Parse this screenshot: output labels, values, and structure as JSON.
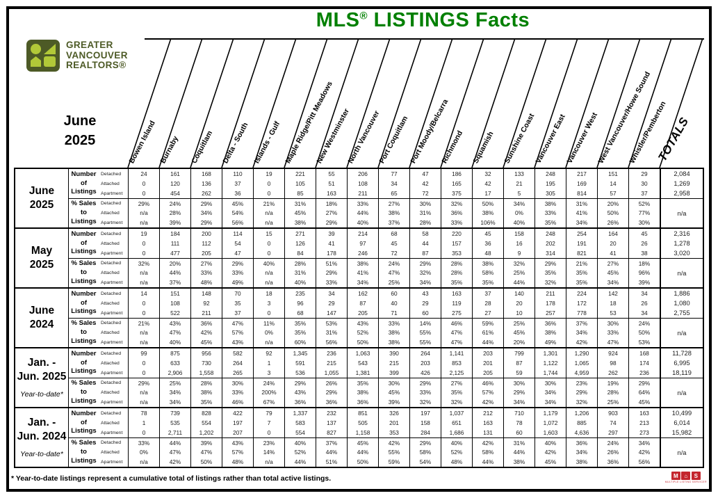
{
  "title": {
    "mls": "MLS",
    "reg": "®",
    "rest": " LISTINGS Facts"
  },
  "logo": {
    "lines": [
      "GREATER",
      "VANCOUVER",
      "REALTORS®"
    ]
  },
  "report_period": {
    "line1": "June",
    "line2": "2025"
  },
  "totals_label": "TOTALS",
  "columns": [
    "Bowen Island",
    "Burnaby",
    "Coquitlam",
    "Delta - South",
    "Islands - Gulf",
    "Maple Ridge/Pitt Meadows",
    "New Westminster",
    "North Vancouver",
    "Port Coquitlam",
    "Port Moody/Belcarra",
    "Richmond",
    "Squamish",
    "Sunshine Coast",
    "Vancouver East",
    "Vancouver West",
    "West Vancouver/Howe Sound",
    "Whistler/Pemberton"
  ],
  "row_labels": {
    "number": [
      "Number",
      "of",
      "Listings"
    ],
    "sales": [
      "% Sales to",
      "Listings"
    ],
    "types": [
      "Detached",
      "Attached",
      "Apartment"
    ]
  },
  "groups": [
    {
      "id": "june-2025",
      "label_lines": [
        "June",
        "2025"
      ],
      "note": "",
      "listings": {
        "Detached": [
          "24",
          "161",
          "168",
          "110",
          "19",
          "221",
          "55",
          "206",
          "77",
          "47",
          "186",
          "32",
          "133",
          "248",
          "217",
          "151",
          "29"
        ],
        "Attached": [
          "0",
          "120",
          "136",
          "37",
          "0",
          "105",
          "51",
          "108",
          "34",
          "42",
          "165",
          "42",
          "21",
          "195",
          "169",
          "14",
          "30"
        ],
        "Apartment": [
          "0",
          "454",
          "262",
          "36",
          "0",
          "85",
          "163",
          "211",
          "65",
          "72",
          "375",
          "17",
          "5",
          "305",
          "814",
          "57",
          "37"
        ]
      },
      "listings_totals": {
        "Detached": "2,084",
        "Attached": "1,269",
        "Apartment": "2,958"
      },
      "sales": {
        "Detached": [
          "29%",
          "24%",
          "29%",
          "45%",
          "21%",
          "31%",
          "18%",
          "33%",
          "27%",
          "30%",
          "32%",
          "50%",
          "34%",
          "38%",
          "31%",
          "20%",
          "52%"
        ],
        "Attached": [
          "n/a",
          "28%",
          "34%",
          "54%",
          "n/a",
          "45%",
          "27%",
          "44%",
          "38%",
          "31%",
          "36%",
          "38%",
          "0%",
          "33%",
          "41%",
          "50%",
          "77%"
        ],
        "Apartment": [
          "n/a",
          "39%",
          "29%",
          "56%",
          "n/a",
          "38%",
          "29%",
          "40%",
          "37%",
          "28%",
          "33%",
          "106%",
          "40%",
          "35%",
          "34%",
          "26%",
          "30%"
        ]
      },
      "sales_total": "n/a"
    },
    {
      "id": "may-2025",
      "label_lines": [
        "May",
        "2025"
      ],
      "note": "",
      "listings": {
        "Detached": [
          "19",
          "184",
          "200",
          "114",
          "15",
          "271",
          "39",
          "214",
          "68",
          "58",
          "220",
          "45",
          "158",
          "248",
          "254",
          "164",
          "45"
        ],
        "Attached": [
          "0",
          "111",
          "112",
          "54",
          "0",
          "126",
          "41",
          "97",
          "45",
          "44",
          "157",
          "36",
          "16",
          "202",
          "191",
          "20",
          "26"
        ],
        "Apartment": [
          "0",
          "477",
          "205",
          "47",
          "0",
          "84",
          "178",
          "246",
          "72",
          "87",
          "353",
          "48",
          "9",
          "314",
          "821",
          "41",
          "38"
        ]
      },
      "listings_totals": {
        "Detached": "2,316",
        "Attached": "1,278",
        "Apartment": "3,020"
      },
      "sales": {
        "Detached": [
          "32%",
          "20%",
          "27%",
          "29%",
          "40%",
          "28%",
          "51%",
          "38%",
          "24%",
          "29%",
          "28%",
          "38%",
          "32%",
          "29%",
          "21%",
          "27%",
          "18%"
        ],
        "Attached": [
          "n/a",
          "44%",
          "33%",
          "33%",
          "n/a",
          "31%",
          "29%",
          "41%",
          "47%",
          "32%",
          "28%",
          "58%",
          "25%",
          "35%",
          "35%",
          "45%",
          "96%"
        ],
        "Apartment": [
          "n/a",
          "37%",
          "48%",
          "49%",
          "n/a",
          "40%",
          "33%",
          "34%",
          "25%",
          "34%",
          "35%",
          "35%",
          "44%",
          "32%",
          "35%",
          "34%",
          "39%"
        ]
      },
      "sales_total": "n/a"
    },
    {
      "id": "june-2024",
      "label_lines": [
        "June",
        "2024"
      ],
      "note": "",
      "listings": {
        "Detached": [
          "14",
          "151",
          "148",
          "70",
          "18",
          "235",
          "34",
          "162",
          "60",
          "43",
          "163",
          "37",
          "140",
          "211",
          "224",
          "142",
          "34"
        ],
        "Attached": [
          "0",
          "108",
          "92",
          "35",
          "3",
          "96",
          "29",
          "87",
          "40",
          "29",
          "119",
          "28",
          "20",
          "178",
          "172",
          "18",
          "26"
        ],
        "Apartment": [
          "0",
          "522",
          "211",
          "37",
          "0",
          "68",
          "147",
          "205",
          "71",
          "60",
          "275",
          "27",
          "10",
          "257",
          "778",
          "53",
          "34"
        ]
      },
      "listings_totals": {
        "Detached": "1,886",
        "Attached": "1,080",
        "Apartment": "2,755"
      },
      "sales": {
        "Detached": [
          "21%",
          "43%",
          "36%",
          "47%",
          "11%",
          "35%",
          "53%",
          "43%",
          "33%",
          "14%",
          "46%",
          "59%",
          "25%",
          "36%",
          "37%",
          "30%",
          "24%"
        ],
        "Attached": [
          "n/a",
          "47%",
          "42%",
          "57%",
          "0%",
          "35%",
          "31%",
          "52%",
          "38%",
          "55%",
          "47%",
          "61%",
          "45%",
          "38%",
          "34%",
          "33%",
          "50%"
        ],
        "Apartment": [
          "n/a",
          "40%",
          "45%",
          "43%",
          "n/a",
          "60%",
          "56%",
          "50%",
          "38%",
          "55%",
          "47%",
          "44%",
          "20%",
          "49%",
          "42%",
          "47%",
          "53%"
        ]
      },
      "sales_total": "n/a"
    },
    {
      "id": "jan-jun-2025",
      "label_lines": [
        "Jan. -",
        "Jun. 2025"
      ],
      "note": "Year-to-date*",
      "listings": {
        "Detached": [
          "99",
          "875",
          "956",
          "582",
          "92",
          "1,345",
          "236",
          "1,063",
          "390",
          "264",
          "1,141",
          "203",
          "799",
          "1,301",
          "1,290",
          "924",
          "168"
        ],
        "Attached": [
          "0",
          "633",
          "730",
          "264",
          "1",
          "591",
          "215",
          "543",
          "215",
          "203",
          "853",
          "201",
          "87",
          "1,122",
          "1,065",
          "98",
          "174"
        ],
        "Apartment": [
          "0",
          "2,906",
          "1,558",
          "265",
          "3",
          "536",
          "1,055",
          "1,381",
          "399",
          "426",
          "2,125",
          "205",
          "59",
          "1,744",
          "4,959",
          "262",
          "236"
        ]
      },
      "listings_totals": {
        "Detached": "11,728",
        "Attached": "6,995",
        "Apartment": "18,119"
      },
      "sales": {
        "Detached": [
          "29%",
          "25%",
          "28%",
          "30%",
          "24%",
          "29%",
          "26%",
          "35%",
          "30%",
          "29%",
          "27%",
          "46%",
          "30%",
          "30%",
          "23%",
          "19%",
          "29%"
        ],
        "Attached": [
          "n/a",
          "34%",
          "38%",
          "33%",
          "200%",
          "43%",
          "29%",
          "38%",
          "45%",
          "33%",
          "35%",
          "57%",
          "29%",
          "34%",
          "29%",
          "28%",
          "64%"
        ],
        "Apartment": [
          "n/a",
          "34%",
          "35%",
          "46%",
          "67%",
          "36%",
          "36%",
          "36%",
          "39%",
          "32%",
          "32%",
          "42%",
          "34%",
          "34%",
          "32%",
          "25%",
          "45%"
        ]
      },
      "sales_total": "n/a"
    },
    {
      "id": "jan-jun-2024",
      "label_lines": [
        "Jan. -",
        "Jun. 2024"
      ],
      "note": "Year-to-date*",
      "listings": {
        "Detached": [
          "78",
          "739",
          "828",
          "422",
          "79",
          "1,337",
          "232",
          "851",
          "326",
          "197",
          "1,037",
          "212",
          "710",
          "1,179",
          "1,206",
          "903",
          "163"
        ],
        "Attached": [
          "1",
          "535",
          "554",
          "197",
          "7",
          "583",
          "137",
          "505",
          "201",
          "158",
          "651",
          "163",
          "78",
          "1,072",
          "885",
          "74",
          "213"
        ],
        "Apartment": [
          "0",
          "2,711",
          "1,202",
          "207",
          "0",
          "554",
          "827",
          "1,158",
          "353",
          "284",
          "1,686",
          "131",
          "60",
          "1,603",
          "4,636",
          "297",
          "273"
        ]
      },
      "listings_totals": {
        "Detached": "10,499",
        "Attached": "6,014",
        "Apartment": "15,982"
      },
      "sales": {
        "Detached": [
          "33%",
          "44%",
          "39%",
          "43%",
          "23%",
          "40%",
          "37%",
          "45%",
          "42%",
          "29%",
          "40%",
          "42%",
          "31%",
          "40%",
          "36%",
          "24%",
          "34%"
        ],
        "Attached": [
          "0%",
          "47%",
          "47%",
          "57%",
          "14%",
          "52%",
          "44%",
          "44%",
          "55%",
          "58%",
          "52%",
          "58%",
          "44%",
          "42%",
          "34%",
          "26%",
          "42%"
        ],
        "Apartment": [
          "n/a",
          "42%",
          "50%",
          "48%",
          "n/a",
          "44%",
          "51%",
          "50%",
          "59%",
          "54%",
          "48%",
          "44%",
          "38%",
          "45%",
          "38%",
          "36%",
          "56%"
        ]
      },
      "sales_total": "n/a"
    }
  ],
  "footnote": "* Year-to-date listings represent a cumulative total of listings rather than total active listings.",
  "mls_logo": {
    "tiles": [
      "M",
      "⌂",
      "S"
    ],
    "caption": "MULTIPLE LISTING SERVICE®"
  },
  "colors": {
    "title_green": "#008000",
    "logo_dark": "#4d5a26",
    "logo_light": "#b2c938",
    "mls_red": "#c4262e"
  }
}
